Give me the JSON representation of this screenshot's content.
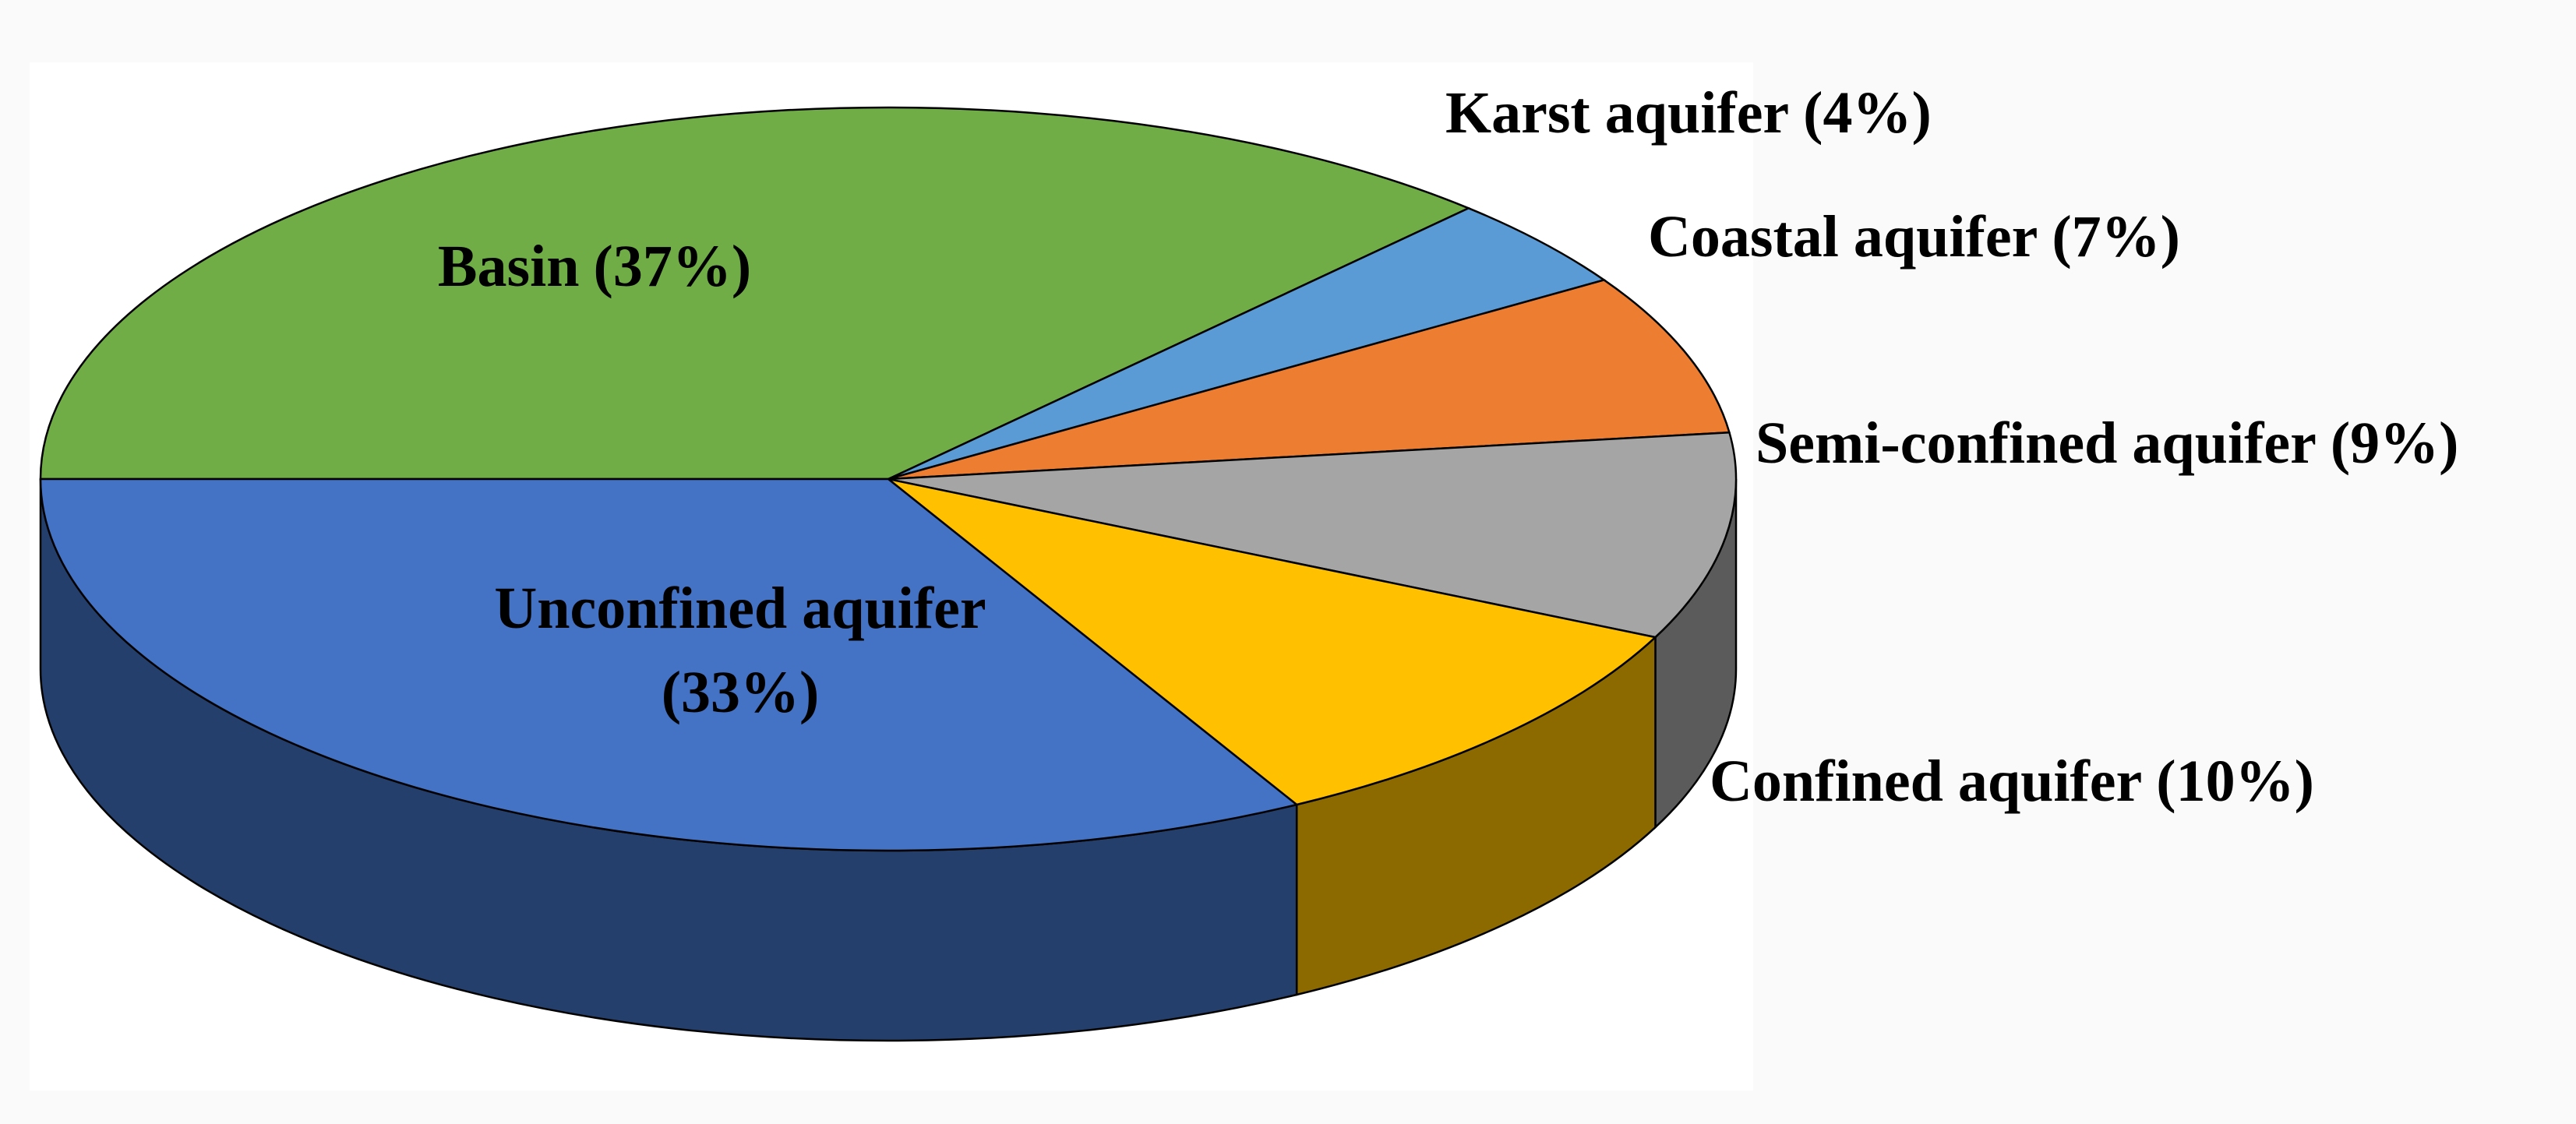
{
  "chart_data": {
    "type": "pie3d",
    "categories": [
      "Basin",
      "Karst aquifer",
      "Coastal aquifer",
      "Semi-confined aquifer",
      "Confined aquifer",
      "Unconfined aquifer"
    ],
    "values": [
      37,
      4,
      7,
      9,
      10,
      33
    ],
    "value_labels": [
      "(37%)",
      "(4%)",
      "(7%)",
      "(9%)",
      "(10%)",
      "(33%)"
    ],
    "colors": [
      "#70ad47",
      "#5b9bd5",
      "#ed7d31",
      "#a5a5a5",
      "#ffc000",
      "#4472c4"
    ]
  }
}
